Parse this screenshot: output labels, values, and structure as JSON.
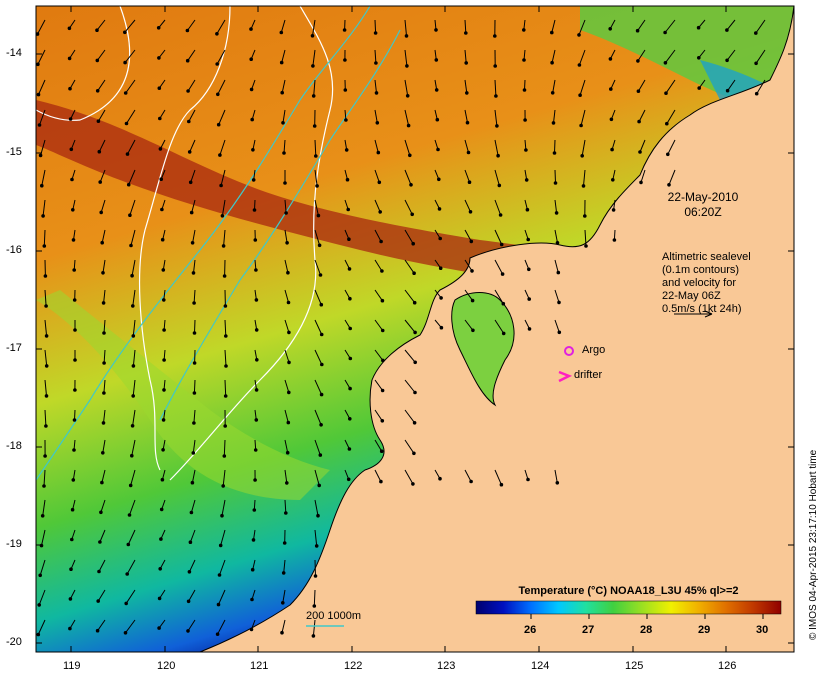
{
  "map": {
    "lat_labels": [
      "-14",
      "-15",
      "-16",
      "-17",
      "-18",
      "-19",
      "-20"
    ],
    "lon_labels": [
      "119",
      "120",
      "121",
      "122",
      "123",
      "124",
      "125",
      "126"
    ],
    "date_line1": "22-May-2010",
    "date_line2": "06:20Z",
    "info_lines": [
      "Altimetric sealevel",
      "(0.1m contours)",
      "and velocity for",
      "22-May 06Z",
      "0.5m/s (1kt 24h)"
    ],
    "argo_label": "Argo",
    "drifter_label": "drifter",
    "isobath_label": "200  1000m",
    "legend_title": "Temperature (°C) NOAA18_L3U 45% ql>=2",
    "legend_ticks": [
      "26",
      "27",
      "28",
      "29",
      "30"
    ],
    "copyright": "© IMOS 04-Apr-2015 23:17:10 Hobart time",
    "colors": {
      "land": "#f9c896",
      "argo": "#e020e0",
      "drifter": "#ff20c0",
      "isobath": "#40c8c8",
      "contour": "#ffffff",
      "coastline": "#000000"
    },
    "colorbar_stops": [
      "#00006e",
      "#0010c0",
      "#0070ff",
      "#00c8ff",
      "#20e0a0",
      "#40d040",
      "#a0e020",
      "#f0f000",
      "#f0b000",
      "#e07000",
      "#c03800",
      "#900000"
    ]
  }
}
